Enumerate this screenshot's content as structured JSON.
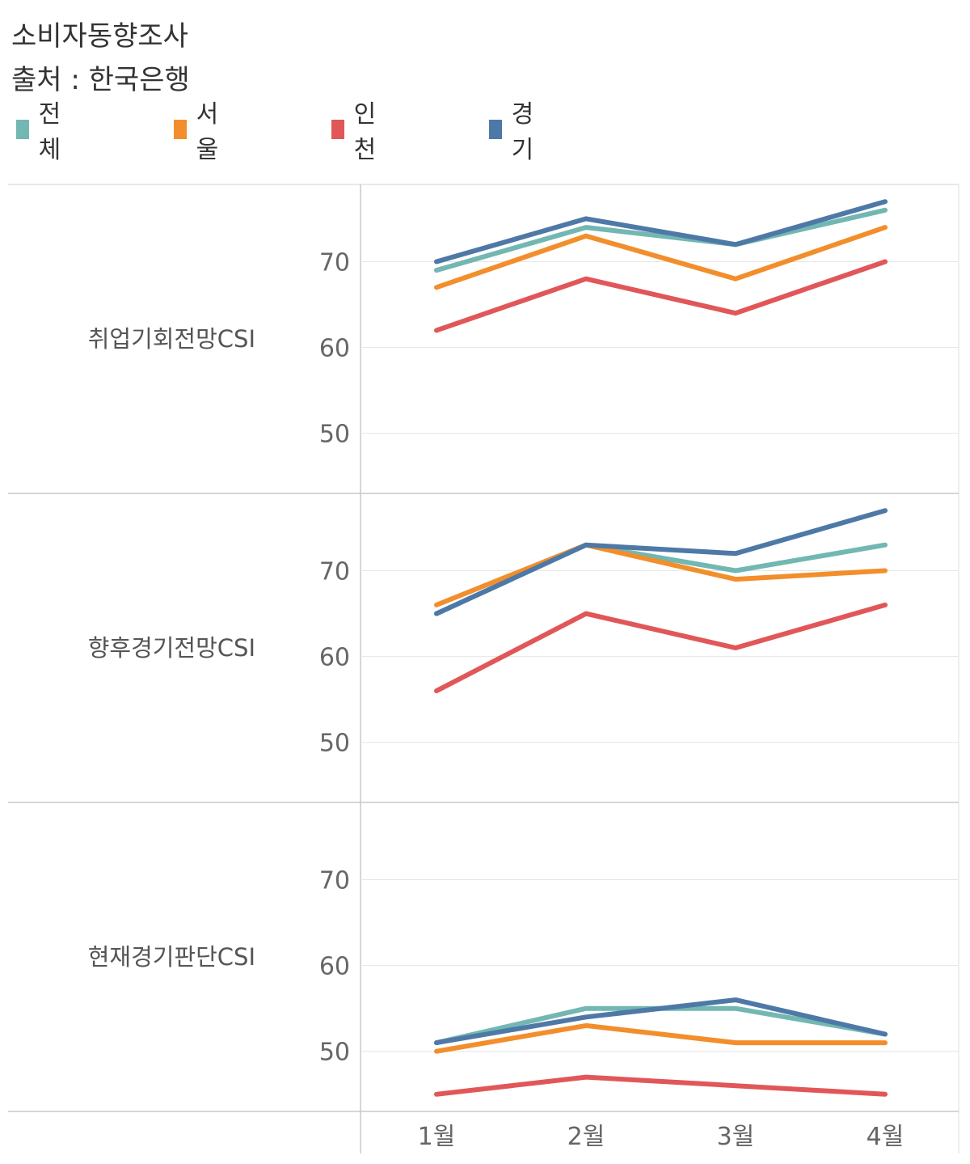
{
  "header": {
    "title": "소비자동향조사",
    "source": "출처 : 한국은행"
  },
  "legend": [
    {
      "label": "전체",
      "color": "#72B7B2"
    },
    {
      "label": "서울",
      "color": "#F28E2B"
    },
    {
      "label": "인천",
      "color": "#E15759"
    },
    {
      "label": "경기",
      "color": "#4E79A7"
    }
  ],
  "chart_data": {
    "type": "line",
    "categories": [
      "1월",
      "2월",
      "3월",
      "4월"
    ],
    "ylim": [
      43,
      79
    ],
    "yticks": [
      50,
      60,
      70
    ],
    "grid": true,
    "legend_position": "top-left",
    "panels": [
      {
        "label": "취업기회전망CSI",
        "series": [
          {
            "name": "전체",
            "values": [
              69,
              74,
              72,
              76
            ]
          },
          {
            "name": "서울",
            "values": [
              67,
              73,
              68,
              74
            ]
          },
          {
            "name": "인천",
            "values": [
              62,
              68,
              64,
              70
            ]
          },
          {
            "name": "경기",
            "values": [
              70,
              75,
              72,
              77
            ]
          }
        ]
      },
      {
        "label": "향후경기전망CSI",
        "series": [
          {
            "name": "전체",
            "values": [
              65,
              73,
              70,
              73
            ]
          },
          {
            "name": "서울",
            "values": [
              66,
              73,
              69,
              70
            ]
          },
          {
            "name": "인천",
            "values": [
              56,
              65,
              61,
              66
            ]
          },
          {
            "name": "경기",
            "values": [
              65,
              73,
              72,
              77
            ]
          }
        ]
      },
      {
        "label": "현재경기판단CSI",
        "series": [
          {
            "name": "전체",
            "values": [
              51,
              55,
              55,
              52
            ]
          },
          {
            "name": "서울",
            "values": [
              50,
              53,
              51,
              51
            ]
          },
          {
            "name": "인천",
            "values": [
              45,
              47,
              46,
              45
            ]
          },
          {
            "name": "경기",
            "values": [
              51,
              54,
              56,
              52
            ]
          }
        ]
      }
    ]
  }
}
